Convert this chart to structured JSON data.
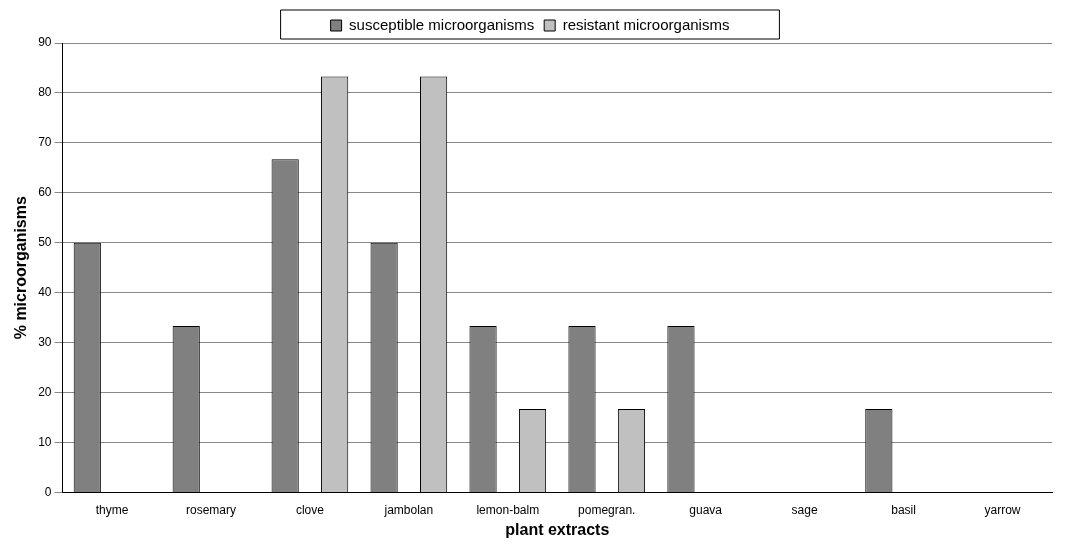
{
  "chart_data": {
    "type": "bar",
    "xlabel": "plant extracts",
    "ylabel": "% microorganisms",
    "categories": [
      "thyme",
      "rosemary",
      "clove",
      "jambolan",
      "lemon-balm",
      "pomegran.",
      "guava",
      "sage",
      "basil",
      "yarrow"
    ],
    "series": [
      {
        "name": "susceptible microorganisms",
        "color": "#808080",
        "values": [
          50,
          33.3,
          66.7,
          50,
          33.3,
          33.3,
          33.3,
          0,
          16.7,
          0
        ]
      },
      {
        "name": "resistant microorganisms",
        "color": "#c0c0c0",
        "values": [
          0,
          0,
          83.3,
          83.3,
          16.7,
          16.7,
          0,
          0,
          0,
          0
        ]
      }
    ],
    "ylim": [
      0,
      90
    ],
    "yticks": [
      0,
      10,
      20,
      30,
      40,
      50,
      60,
      70,
      80,
      90
    ],
    "grid": "y",
    "legend": "top"
  }
}
